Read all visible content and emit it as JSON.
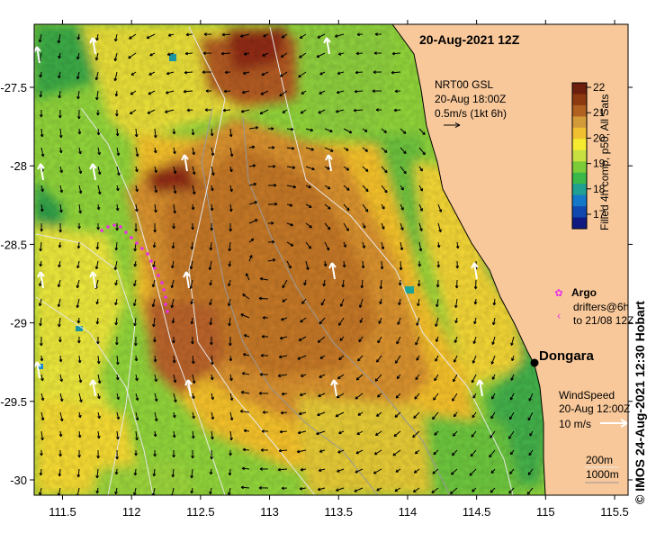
{
  "title": "20-Aug-2021 12Z",
  "current_legend": {
    "line1": "NRT00 GSL",
    "line2": "20-Aug 18:00Z",
    "line3": "0.5m/s (1kt 6h)"
  },
  "colorbar": {
    "label": "Filled 4h comp, p50, All Sats",
    "ticks": [
      "22",
      "21",
      "20",
      "19",
      "18",
      "17"
    ],
    "colors": [
      "#6b1f0c",
      "#8e3a10",
      "#b06020",
      "#d39a3a",
      "#f0c030",
      "#f5ea30",
      "#c8e040",
      "#7ccc3a",
      "#3ab84a",
      "#1fa090",
      "#1478c8",
      "#1048b0",
      "#101a80"
    ]
  },
  "argo_label": "Argo",
  "drifters_line1": "drifters@6h",
  "drifters_line2": "to 21/08 12Z",
  "place": "Dongara",
  "wind_legend": {
    "line1": "WindSpeed",
    "line2": "20-Aug 12:00Z",
    "line3": "10 m/s"
  },
  "depth_legend": {
    "line1": "200m",
    "line2": "1000m"
  },
  "credit": "© IMOS 24-Aug-2021 12:30 Hobart",
  "x_ticks": [
    "111.5",
    "112",
    "112.5",
    "113",
    "113.5",
    "114",
    "114.5",
    "115",
    "115.5"
  ],
  "y_ticks": [
    "-27.5",
    "-28",
    "-28.5",
    "-29",
    "-29.5",
    "-30"
  ],
  "colors": {
    "land": "#f8c89a",
    "frame": "#000000",
    "argo": "#e830e8",
    "wind_arrow": "#ffffff",
    "current_arrow": "#000000"
  }
}
